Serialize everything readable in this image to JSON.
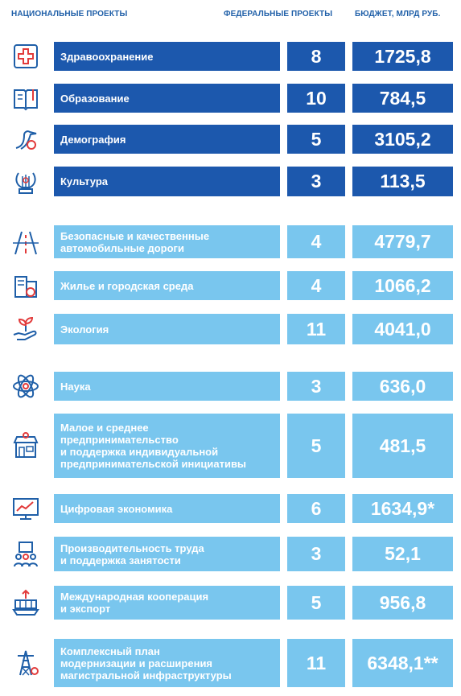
{
  "headers": {
    "national": "НАЦИОНАЛЬНЫЕ ПРОЕКТЫ",
    "federal": "ФЕДЕРАЛЬНЫЕ ПРОЕКТЫ",
    "budget": "БЮДЖЕТ, МЛРД РУБ."
  },
  "colors": {
    "dark": "#1c58ad",
    "light": "#79c6ee",
    "header": "#1f5fa8",
    "icon_red": "#e23b3b"
  },
  "rows": [
    {
      "name": "Здравоохранение",
      "federal": "8",
      "budget": "1725,8",
      "icon": "medical-cross-icon",
      "style": "dark"
    },
    {
      "name": "Образование",
      "federal": "10",
      "budget": "784,5",
      "icon": "book-icon",
      "style": "dark"
    },
    {
      "name": "Демография",
      "federal": "5",
      "budget": "3105,2",
      "icon": "stork-icon",
      "style": "dark"
    },
    {
      "name": "Культура",
      "federal": "3",
      "budget": "113,5",
      "icon": "lyre-icon",
      "style": "dark"
    },
    {
      "name": "Безопасные и качественные\nавтомобильные дороги",
      "federal": "4",
      "budget": "4779,7",
      "icon": "road-icon",
      "style": "light"
    },
    {
      "name": "Жилье и городская среда",
      "federal": "4",
      "budget": "1066,2",
      "icon": "buildings-icon",
      "style": "light"
    },
    {
      "name": "Экология",
      "federal": "11",
      "budget": "4041,0",
      "icon": "plant-hand-icon",
      "style": "light"
    },
    {
      "name": "Наука",
      "federal": "3",
      "budget": "636,0",
      "icon": "atom-icon",
      "style": "light"
    },
    {
      "name": "Малое и среднее\nпредпринимательство\nи поддержка индивидуальной\nпредпринимательской инициативы",
      "federal": "5",
      "budget": "481,5",
      "icon": "shop-icon",
      "style": "light"
    },
    {
      "name": "Цифровая экономика",
      "federal": "6",
      "budget": "1634,9*",
      "icon": "monitor-chart-icon",
      "style": "light"
    },
    {
      "name": "Производительность труда\nи поддержка занятости",
      "federal": "3",
      "budget": "52,1",
      "icon": "workers-icon",
      "style": "light"
    },
    {
      "name": "Международная кооперация\nи экспорт",
      "federal": "5",
      "budget": "956,8",
      "icon": "cargo-export-icon",
      "style": "light"
    },
    {
      "name": "Комплексный план\nмодернизации и расширения\nмагистральной инфраструктуры",
      "federal": "11",
      "budget": "6348,1**",
      "icon": "power-tower-icon",
      "style": "light"
    }
  ]
}
